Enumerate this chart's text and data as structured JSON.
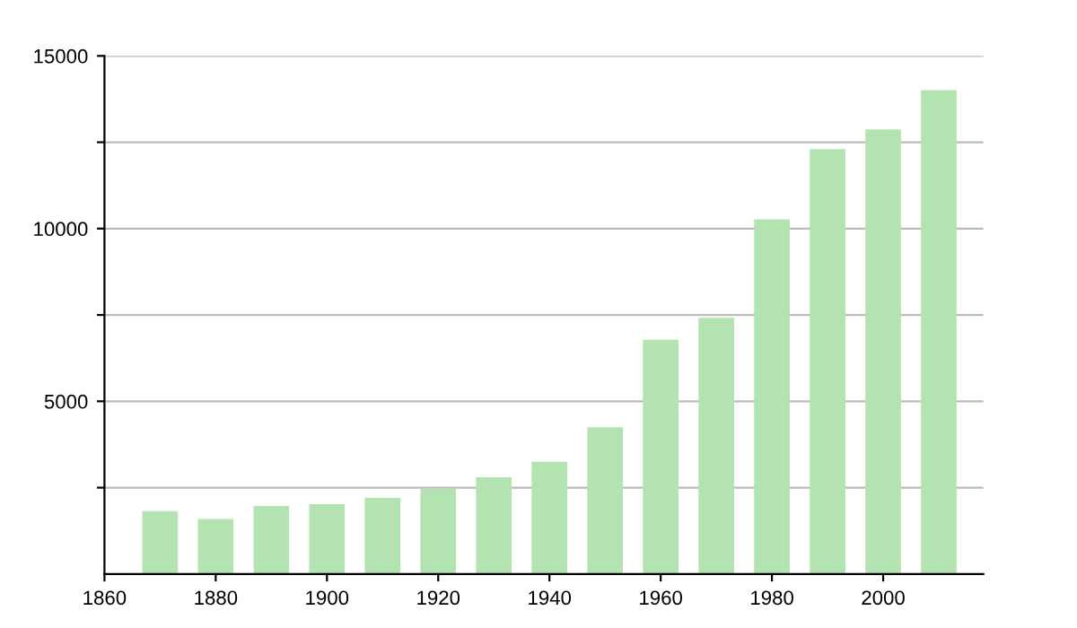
{
  "chart_data": {
    "type": "bar",
    "x": [
      1870,
      1880,
      1890,
      1900,
      1910,
      1920,
      1930,
      1940,
      1950,
      1960,
      1970,
      1980,
      1990,
      2000,
      2010
    ],
    "values": [
      1820,
      1590,
      1970,
      2020,
      2200,
      2460,
      2800,
      3250,
      4250,
      6780,
      7420,
      10270,
      12300,
      12870,
      14010
    ],
    "color": "#b3e3b0",
    "xlim": [
      1860,
      2018
    ],
    "xticks": [
      1860,
      1880,
      1900,
      1920,
      1940,
      1960,
      1980,
      2000
    ],
    "ylim": [
      0,
      15000
    ],
    "yticks": [
      {
        "value": 2500,
        "label": null
      },
      5000,
      {
        "value": 7500,
        "label": null
      },
      10000,
      {
        "value": 12500,
        "label": null
      },
      15000
    ],
    "grid": "y",
    "legend": false
  }
}
